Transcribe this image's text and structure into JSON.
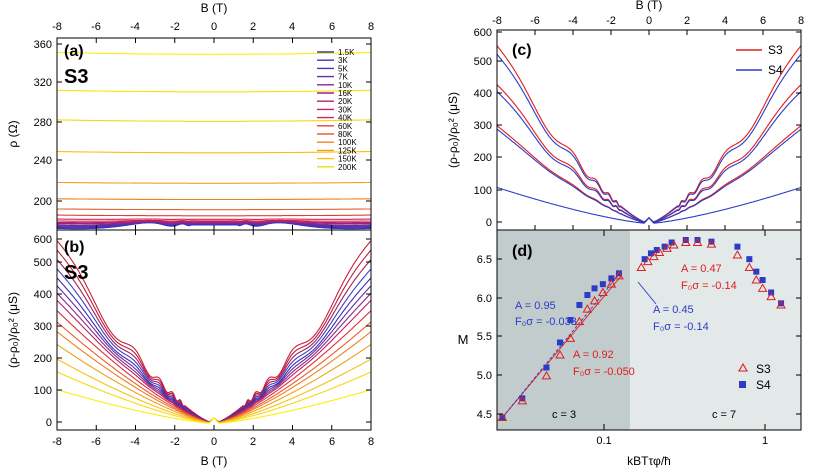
{
  "figure": {
    "panel_a": {
      "label": "(a)",
      "sample": "S3",
      "xlabel_top": "B (T)",
      "ylabel": "ρ  (Ω)",
      "xticks": [
        "-8",
        "-6",
        "-4",
        "-2",
        "0",
        "2",
        "4",
        "6",
        "8"
      ],
      "yticks": [
        "200",
        "240",
        "280",
        "320",
        "360"
      ]
    },
    "panel_b": {
      "label": "(b)",
      "sample": "S3",
      "xlabel": "B (T)",
      "ylabel": "(ρ-ρ₀)/ρ₀² (μS)",
      "xticks": [
        "-8",
        "-6",
        "-4",
        "-2",
        "0",
        "2",
        "4",
        "6",
        "8"
      ],
      "yticks": [
        "0",
        "100",
        "200",
        "300",
        "400",
        "500",
        "600"
      ]
    },
    "panel_c": {
      "label": "(c)",
      "xlabel_top": "B (T)",
      "ylabel": "(ρ-ρ₀)/ρ₀² (μS)",
      "xticks": [
        "-8",
        "-6",
        "-4",
        "-2",
        "0",
        "2",
        "4",
        "6",
        "8"
      ],
      "yticks": [
        "0",
        "100",
        "200",
        "300",
        "400",
        "500",
        "600"
      ]
    },
    "panel_d": {
      "label": "(d)",
      "xlabel": "kBTτφ/ħ",
      "ylabel": "M",
      "xticks": [
        "0.1",
        "1"
      ],
      "yticks": [
        "4.5",
        "5.0",
        "5.5",
        "6.0",
        "6.5"
      ],
      "region_left": "c = 3",
      "region_right": "c = 7",
      "ann_blue_1": {
        "a": "A = 0.95",
        "f": "F₀σ = -0.033"
      },
      "ann_red_1": {
        "a": "A = 0.92",
        "f": "F₀σ = -0.050"
      },
      "ann_blue_2": {
        "a": "A = 0.45",
        "f": "F₀σ = -0.14"
      },
      "ann_red_2": {
        "a": "A = 0.47",
        "f": "F₀σ = -0.14"
      }
    }
  },
  "colors": {
    "blue": "#2a3cc8",
    "red": "#e01e1e",
    "shade_dark": "#c2cccc",
    "shade_light": "#e3e8e8"
  },
  "chart_data": [
    {
      "type": "line",
      "panel": "a",
      "title": "S3",
      "xlabel": "B (T)",
      "ylabel": "ρ (Ω)",
      "xlim": [
        -8,
        8
      ],
      "ylim": [
        176,
        365
      ],
      "series": [
        {
          "name": "1.5K",
          "rho0": 181,
          "osc": 5
        },
        {
          "name": "3K",
          "rho0": 181.5,
          "osc": 4.5
        },
        {
          "name": "5K",
          "rho0": 182,
          "osc": 4
        },
        {
          "name": "7K",
          "rho0": 182.5,
          "osc": 3.5
        },
        {
          "name": "10K",
          "rho0": 183,
          "osc": 3
        },
        {
          "name": "16K",
          "rho0": 183.5,
          "osc": 2
        },
        {
          "name": "20K",
          "rho0": 184,
          "osc": 1.5
        },
        {
          "name": "30K",
          "rho0": 185,
          "osc": 1
        },
        {
          "name": "40K",
          "rho0": 186.5,
          "osc": 0.5
        },
        {
          "name": "60K",
          "rho0": 190,
          "osc": 0
        },
        {
          "name": "80K",
          "rho0": 196,
          "osc": 0
        },
        {
          "name": "100K",
          "rho0": 206,
          "osc": 0
        },
        {
          "name": "125K",
          "rho0": 222,
          "osc": 0
        },
        {
          "name": "150K",
          "rho0": 252,
          "osc": 0
        },
        {
          "name": "200K",
          "rho0": 283,
          "osc": 0
        },
        {
          "name": "",
          "rho0": 312,
          "osc": 0
        },
        {
          "name": "",
          "rho0": 349,
          "osc": 0
        }
      ]
    },
    {
      "type": "line",
      "panel": "b",
      "title": "S3",
      "xlabel": "B (T)",
      "ylabel": "(ρ-ρ0)/ρ0² (μS)",
      "xlim": [
        -8,
        8
      ],
      "ylim": [
        -20,
        600
      ],
      "series": [
        {
          "name": "1.5K",
          "end": 540,
          "osc": 38
        },
        {
          "name": "3K",
          "end": 515,
          "osc": 32
        },
        {
          "name": "5K",
          "end": 490,
          "osc": 26
        },
        {
          "name": "7K",
          "end": 465,
          "osc": 20
        },
        {
          "name": "10K",
          "end": 440,
          "osc": 16
        },
        {
          "name": "16K",
          "end": 420,
          "osc": 10
        },
        {
          "name": "20K",
          "end": 400,
          "osc": 6
        },
        {
          "name": "30K",
          "end": 380,
          "osc": 3
        },
        {
          "name": "40K",
          "end": 350,
          "osc": 0
        },
        {
          "name": "60K",
          "end": 315,
          "osc": 0
        },
        {
          "name": "80K",
          "end": 285,
          "osc": 0
        },
        {
          "name": "100K",
          "end": 245,
          "osc": 0
        },
        {
          "name": "125K",
          "end": 200,
          "osc": 0
        },
        {
          "name": "150K",
          "end": 160,
          "osc": 0
        },
        {
          "name": "200K",
          "end": 105,
          "osc": 0
        }
      ]
    },
    {
      "type": "line",
      "panel": "c",
      "xlabel": "B (T)",
      "ylabel": "(ρ-ρ0)/ρ0² (μS)",
      "xlim": [
        -8,
        8
      ],
      "ylim": [
        -20,
        600
      ],
      "legend": [
        "S3",
        "S4"
      ],
      "series": [
        {
          "name": "S3",
          "end": 530,
          "osc": 30
        },
        {
          "name": "S4",
          "end": 505,
          "osc": 28
        },
        {
          "name": "S3",
          "end": 415,
          "osc": 22
        },
        {
          "name": "S4",
          "end": 395,
          "osc": 20
        },
        {
          "name": "S3",
          "end": 300,
          "osc": 5
        },
        {
          "name": "S4",
          "end": 290,
          "osc": 4
        },
        {
          "name": "S4",
          "end": 112,
          "osc": 0
        }
      ]
    },
    {
      "type": "scatter",
      "panel": "d",
      "xlabel": "kBTτφ/ħ",
      "ylabel": "M",
      "xscale": "log",
      "xlim": [
        0.025,
        2.0
      ],
      "ylim": [
        4.4,
        6.8
      ],
      "legend": [
        "S3",
        "S4"
      ],
      "series": [
        {
          "name": "S3",
          "x": [
            0.027,
            0.036,
            0.051,
            0.062,
            0.072,
            0.082,
            0.092,
            0.102,
            0.115,
            0.13,
            0.145,
            0.2,
            0.22,
            0.24,
            0.26,
            0.29,
            0.32,
            0.38,
            0.45,
            0.55,
            0.8,
            0.95,
            1.05,
            1.15,
            1.3,
            1.5
          ],
          "y": [
            4.55,
            4.75,
            5.05,
            5.3,
            5.5,
            5.7,
            5.85,
            5.95,
            6.05,
            6.15,
            6.25,
            6.35,
            6.42,
            6.48,
            6.53,
            6.58,
            6.62,
            6.65,
            6.65,
            6.63,
            6.5,
            6.35,
            6.2,
            6.1,
            6.0,
            5.9
          ]
        },
        {
          "name": "S4",
          "x": [
            0.027,
            0.036,
            0.051,
            0.062,
            0.072,
            0.082,
            0.092,
            0.102,
            0.115,
            0.13,
            0.145,
            0.21,
            0.23,
            0.25,
            0.28,
            0.31,
            0.38,
            0.45,
            0.55,
            0.8,
            0.95,
            1.05,
            1.15,
            1.3,
            1.5
          ],
          "y": [
            4.55,
            4.78,
            5.15,
            5.45,
            5.72,
            5.9,
            6.02,
            6.1,
            6.15,
            6.22,
            6.28,
            6.45,
            6.52,
            6.56,
            6.6,
            6.65,
            6.68,
            6.68,
            6.66,
            6.6,
            6.45,
            6.3,
            6.2,
            6.05,
            5.92
          ]
        }
      ]
    }
  ]
}
